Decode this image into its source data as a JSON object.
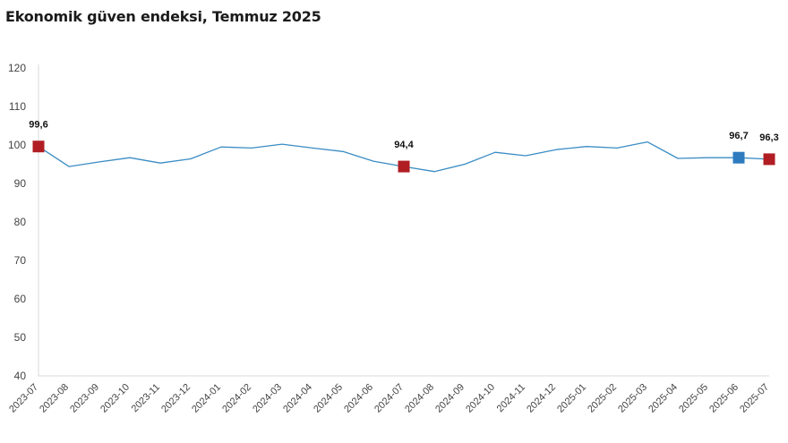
{
  "chart_data": {
    "type": "line",
    "title": "Ekonomik güven endeksi, Temmuz 2025",
    "xlabel": "",
    "ylabel": "",
    "ylim": [
      40,
      120
    ],
    "yticks": [
      40,
      50,
      60,
      70,
      80,
      90,
      100,
      110,
      120
    ],
    "grid": false,
    "legend": "none",
    "categories": [
      "2023-07",
      "2023-08",
      "2023-09",
      "2023-10",
      "2023-11",
      "2023-12",
      "2024-01",
      "2024-02",
      "2024-03",
      "2024-04",
      "2024-05",
      "2024-06",
      "2024-07",
      "2024-08",
      "2024-09",
      "2024-10",
      "2024-11",
      "2024-12",
      "2025-01",
      "2025-02",
      "2025-03",
      "2025-04",
      "2025-05",
      "2025-06",
      "2025-07"
    ],
    "series": [
      {
        "name": "",
        "color": "#3a8cc4",
        "values": [
          99.6,
          94.4,
          95.6,
          96.7,
          95.3,
          96.4,
          99.5,
          99.2,
          100.2,
          99.2,
          98.3,
          95.8,
          94.4,
          93.1,
          95.0,
          98.1,
          97.2,
          98.8,
          99.6,
          99.2,
          100.8,
          96.5,
          96.7,
          96.7,
          96.3
        ]
      }
    ],
    "highlights": [
      {
        "category": "2023-07",
        "value": 99.6,
        "label": "99,6",
        "color": "#b01e23"
      },
      {
        "category": "2024-07",
        "value": 94.4,
        "label": "94,4",
        "color": "#b01e23"
      },
      {
        "category": "2025-06",
        "value": 96.7,
        "label": "96,7",
        "color": "#2e7bbf"
      },
      {
        "category": "2025-07",
        "value": 96.3,
        "label": "96,3",
        "color": "#b01e23"
      }
    ]
  }
}
